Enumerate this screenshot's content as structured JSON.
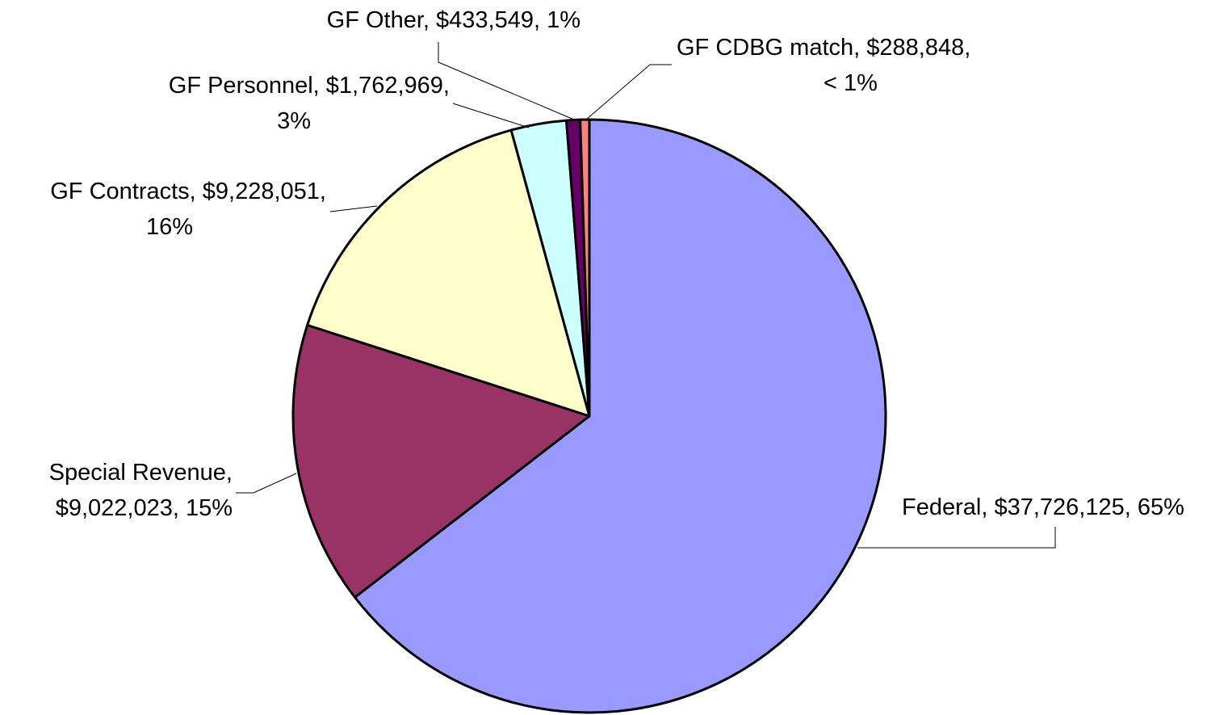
{
  "chart_data": {
    "type": "pie",
    "title": "",
    "start": "12 o'clock",
    "direction": "clockwise",
    "legend": "none",
    "slices": [
      {
        "name": "Federal",
        "value": 37726125,
        "percent_label": "65%",
        "color": "#9999ff",
        "label_lines": [
          "Federal, $37,726,125, 65%"
        ]
      },
      {
        "name": "Special Revenue",
        "value": 9022023,
        "percent_label": "15%",
        "color": "#993366",
        "label_lines": [
          "Special Revenue,",
          "$9,022,023, 15%"
        ]
      },
      {
        "name": "GF Contracts",
        "value": 9228051,
        "percent_label": "16%",
        "color": "#ffffcc",
        "label_lines": [
          "GF Contracts, $9,228,051,",
          "16%"
        ]
      },
      {
        "name": "GF Personnel",
        "value": 1762969,
        "percent_label": "3%",
        "color": "#ccffff",
        "label_lines": [
          "GF Personnel, $1,762,969,",
          "3%"
        ]
      },
      {
        "name": "GF Other",
        "value": 433549,
        "percent_label": "1%",
        "color": "#660066",
        "label_lines": [
          "GF Other, $433,549, 1%"
        ]
      },
      {
        "name": "GF CDBG match",
        "value": 288848,
        "percent_label": "< 1%",
        "color": "#ff8080",
        "label_lines": [
          "GF CDBG match, $288,848,",
          "< 1%"
        ]
      }
    ]
  }
}
